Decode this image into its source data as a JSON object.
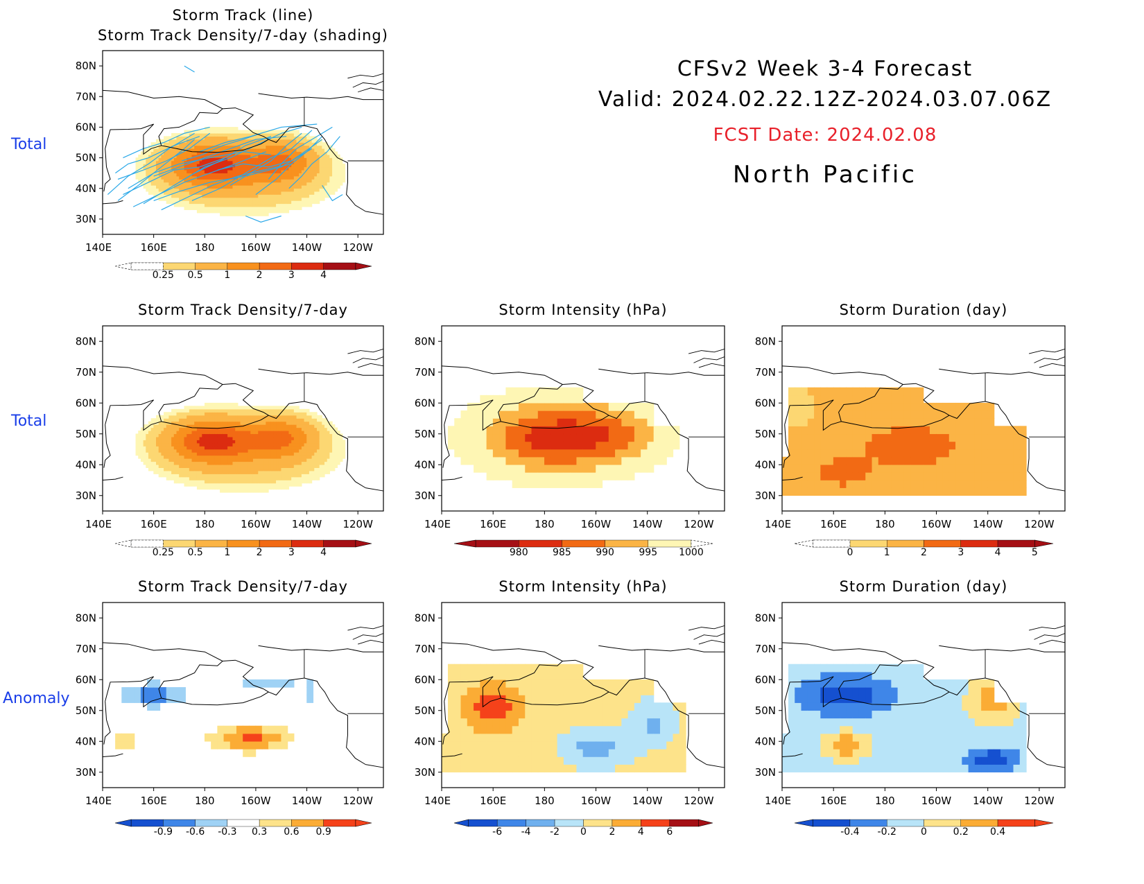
{
  "header": {
    "title_line1": "CFSv2 Week 3-4 Forecast",
    "title_line2": "Valid: 2024.02.22.12Z-2024.03.07.06Z",
    "fcst_date": "FCST Date: 2024.02.08",
    "region": "North Pacific"
  },
  "row_labels": [
    "Total",
    "Total",
    "Anomaly"
  ],
  "axes": {
    "x_ticks": [
      "140E",
      "160E",
      "180",
      "160W",
      "140W",
      "120W"
    ],
    "y_ticks": [
      "80N",
      "70N",
      "60N",
      "50N",
      "40N",
      "30N"
    ],
    "lon_range": [
      140,
      250
    ],
    "lat_range": [
      25,
      85
    ]
  },
  "colors": {
    "track_line": "#2aa8e8",
    "coast": "#000000",
    "label_blue": "#1a3ee8",
    "fcst_red": "#e8202a"
  },
  "chart_data": [
    {
      "id": "p1",
      "type": "heatmap",
      "title_lines": [
        "Storm Track (line)",
        "Storm Track Density/7-day (shading)"
      ],
      "field": "density",
      "overlay": "storm_tracks",
      "colorbar": {
        "labels": [
          "0.25",
          "0.5",
          "1",
          "2",
          "3",
          "4"
        ],
        "levels": [
          0.25,
          0.5,
          1,
          2,
          3,
          4
        ],
        "colors": [
          "#fef6b4",
          "#fcd772",
          "#fbb445",
          "#f8911e",
          "#f26a14",
          "#dc2c10",
          "#a50f15"
        ]
      }
    },
    {
      "id": "p2",
      "type": "heatmap",
      "title_lines": [
        "Storm Track Density/7-day"
      ],
      "field": "density",
      "colorbar": {
        "labels": [
          "0.25",
          "0.5",
          "1",
          "2",
          "3",
          "4"
        ],
        "levels": [
          0.25,
          0.5,
          1,
          2,
          3,
          4
        ],
        "colors": [
          "#fef6b4",
          "#fcd772",
          "#fbb445",
          "#f8911e",
          "#f26a14",
          "#dc2c10",
          "#a50f15"
        ]
      }
    },
    {
      "id": "p3",
      "type": "heatmap",
      "title_lines": [
        "Storm Intensity (hPa)"
      ],
      "field": "intensity",
      "colorbar": {
        "labels": [
          "980",
          "985",
          "990",
          "995",
          "1000"
        ],
        "levels": [
          980,
          985,
          990,
          995,
          1000
        ],
        "colors": [
          "#a50f15",
          "#dc2c10",
          "#f26a14",
          "#fbb445",
          "#fef6b4"
        ]
      }
    },
    {
      "id": "p4",
      "type": "heatmap",
      "title_lines": [
        "Storm Duration (day)"
      ],
      "field": "duration",
      "colorbar": {
        "labels": [
          "0",
          "1",
          "2",
          "3",
          "4",
          "5"
        ],
        "levels": [
          0,
          1,
          2,
          3,
          4,
          5
        ],
        "colors": [
          "#fef6b4",
          "#fcd772",
          "#fbb445",
          "#f26a14",
          "#dc2c10",
          "#a50f15"
        ]
      }
    },
    {
      "id": "p5",
      "type": "heatmap",
      "title_lines": [
        "Storm Track Density/7-day"
      ],
      "field": "density_anom",
      "colorbar": {
        "labels": [
          "-0.9",
          "-0.6",
          "-0.3",
          "0.3",
          "0.6",
          "0.9"
        ],
        "levels": [
          -0.9,
          -0.6,
          -0.3,
          0.3,
          0.6,
          0.9
        ],
        "colors": [
          "#1550d0",
          "#3f86e8",
          "#9fd2f5",
          "#ffffff",
          "#fde38a",
          "#fbac35",
          "#f5421a"
        ]
      }
    },
    {
      "id": "p6",
      "type": "heatmap",
      "title_lines": [
        "Storm Intensity (hPa)"
      ],
      "field": "intensity_anom",
      "colorbar": {
        "labels": [
          "-6",
          "-4",
          "-2",
          "0",
          "2",
          "4",
          "6"
        ],
        "levels": [
          -6,
          -4,
          -2,
          0,
          2,
          4,
          6
        ],
        "colors": [
          "#1550d0",
          "#3f86e8",
          "#6fb0ee",
          "#b8e4f8",
          "#fde38a",
          "#fbac35",
          "#f5421a",
          "#a50f15"
        ]
      }
    },
    {
      "id": "p7",
      "type": "heatmap",
      "title_lines": [
        "Storm Duration (day)"
      ],
      "field": "duration_anom",
      "colorbar": {
        "labels": [
          "-0.4",
          "-0.2",
          "0",
          "0.2",
          "0.4"
        ],
        "levels": [
          -0.4,
          -0.2,
          0,
          0.2,
          0.4
        ],
        "colors": [
          "#1550d0",
          "#3f86e8",
          "#b8e4f8",
          "#fde38a",
          "#fbac35",
          "#f5421a"
        ]
      }
    }
  ]
}
